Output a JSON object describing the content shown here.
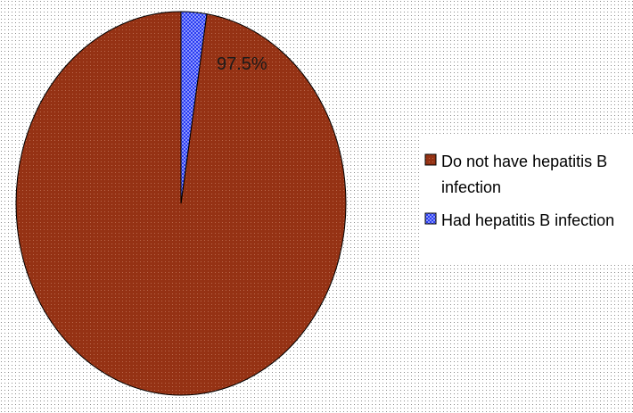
{
  "chart_data": {
    "type": "pie",
    "title": "",
    "categories": [
      "Do not have hepatitis B infection",
      "Had hepatitis B infection"
    ],
    "values": [
      97.5,
      2.5
    ],
    "data_labels": [
      "97.5%",
      ""
    ],
    "legend": {
      "placement": "right",
      "entries": [
        {
          "lines": [
            "Do not have hepatitis B",
            "infection"
          ]
        },
        {
          "lines": [
            "Had hepatitis B infection"
          ]
        }
      ]
    },
    "colors": {
      "slice_main": "#953214",
      "slice_minor": "#2a3cf0",
      "background_dot": "#8c8c8c"
    },
    "start": "top",
    "direction": "counterclockwise"
  }
}
